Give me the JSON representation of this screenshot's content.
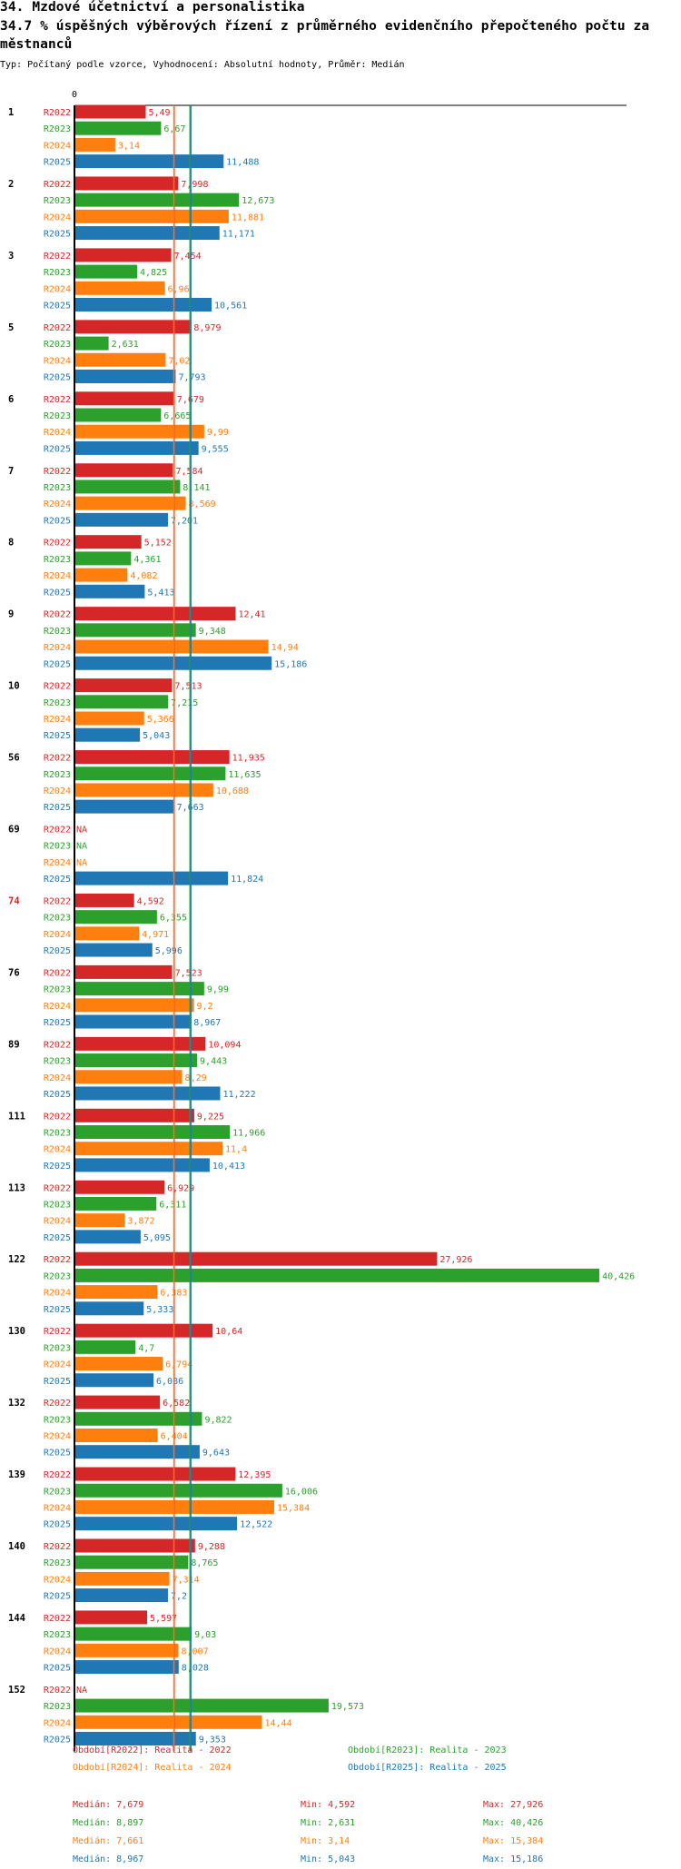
{
  "title": "34. Mzdové účetnictví a personalistika",
  "subtitle_line1": "34.7 % úspěšných výběrových řízení z průměrného evidenčního přepočteného počtu za",
  "subtitle_line2": "městnanců",
  "info": "Typ: Počítaný podle vzorce, Vyhodnocení: Absolutní hodnoty, Průměr: Medián",
  "colors": {
    "R2022": "#d62728",
    "R2023": "#2ca02c",
    "R2024": "#ff7f0e",
    "R2025": "#1f77b4",
    "highlight_group": "#d62728"
  },
  "chart_data": {
    "type": "bar",
    "orientation": "horizontal",
    "axis_zero_label": "0",
    "xlim": [
      0,
      40.426
    ],
    "series_names": [
      "R2022",
      "R2023",
      "R2024",
      "R2025"
    ],
    "median_lines": [
      {
        "series": "R2022",
        "value": 7.679
      },
      {
        "series": "R2023",
        "value": 8.897
      },
      {
        "series": "R2024",
        "value": 7.661
      },
      {
        "series": "R2025",
        "value": 8.967
      }
    ],
    "groups": [
      {
        "label": "1",
        "values": [
          5.49,
          6.67,
          3.14,
          11.488
        ],
        "labels": [
          "5,49",
          "6,67",
          "3,14",
          "11,488"
        ]
      },
      {
        "label": "2",
        "values": [
          7.998,
          12.673,
          11.881,
          11.171
        ],
        "labels": [
          "7,998",
          "12,673",
          "11,881",
          "11,171"
        ]
      },
      {
        "label": "3",
        "values": [
          7.454,
          4.825,
          6.96,
          10.561
        ],
        "labels": [
          "7,454",
          "4,825",
          "6,96",
          "10,561"
        ]
      },
      {
        "label": "5",
        "values": [
          8.979,
          2.631,
          7.02,
          7.793
        ],
        "labels": [
          "8,979",
          "2,631",
          "7,02",
          "7,793"
        ]
      },
      {
        "label": "6",
        "values": [
          7.679,
          6.665,
          9.99,
          9.555
        ],
        "labels": [
          "7,679",
          "6,665",
          "9,99",
          "9,555"
        ]
      },
      {
        "label": "7",
        "values": [
          7.584,
          8.141,
          8.569,
          7.201
        ],
        "labels": [
          "7,584",
          "8,141",
          "8,569",
          "7,201"
        ]
      },
      {
        "label": "8",
        "values": [
          5.152,
          4.361,
          4.082,
          5.413
        ],
        "labels": [
          "5,152",
          "4,361",
          "4,082",
          "5,413"
        ]
      },
      {
        "label": "9",
        "values": [
          12.41,
          9.348,
          14.94,
          15.186
        ],
        "labels": [
          "12,41",
          "9,348",
          "14,94",
          "15,186"
        ]
      },
      {
        "label": "10",
        "values": [
          7.513,
          7.215,
          5.366,
          5.043
        ],
        "labels": [
          "7,513",
          "7,215",
          "5,366",
          "5,043"
        ]
      },
      {
        "label": "56",
        "values": [
          11.935,
          11.635,
          10.688,
          7.663
        ],
        "labels": [
          "11,935",
          "11,635",
          "10,688",
          "7,663"
        ]
      },
      {
        "label": "69",
        "values": [
          null,
          null,
          null,
          11.824
        ],
        "labels": [
          "NA",
          "NA",
          "NA",
          "11,824"
        ]
      },
      {
        "label": "74",
        "values": [
          4.592,
          6.355,
          4.971,
          5.996
        ],
        "labels": [
          "4,592",
          "6,355",
          "4,971",
          "5,996"
        ],
        "highlight": true
      },
      {
        "label": "76",
        "values": [
          7.523,
          9.99,
          9.2,
          8.967
        ],
        "labels": [
          "7,523",
          "9,99",
          "9,2",
          "8,967"
        ]
      },
      {
        "label": "89",
        "values": [
          10.094,
          9.443,
          8.29,
          11.222
        ],
        "labels": [
          "10,094",
          "9,443",
          "8,29",
          "11,222"
        ]
      },
      {
        "label": "111",
        "values": [
          9.225,
          11.966,
          11.4,
          10.413
        ],
        "labels": [
          "9,225",
          "11,966",
          "11,4",
          "10,413"
        ]
      },
      {
        "label": "113",
        "values": [
          6.929,
          6.311,
          3.872,
          5.095
        ],
        "labels": [
          "6,929",
          "6,311",
          "3,872",
          "5,095"
        ]
      },
      {
        "label": "122",
        "values": [
          27.926,
          40.426,
          6.383,
          5.333
        ],
        "labels": [
          "27,926",
          "40,426",
          "6,383",
          "5,333"
        ]
      },
      {
        "label": "130",
        "values": [
          10.64,
          4.7,
          6.794,
          6.086
        ],
        "labels": [
          "10,64",
          "4,7",
          "6,794",
          "6,086"
        ]
      },
      {
        "label": "132",
        "values": [
          6.582,
          9.822,
          6.404,
          9.643
        ],
        "labels": [
          "6,582",
          "9,822",
          "6,404",
          "9,643"
        ]
      },
      {
        "label": "139",
        "values": [
          12.395,
          16.006,
          15.384,
          12.522
        ],
        "labels": [
          "12,395",
          "16,006",
          "15,384",
          "12,522"
        ]
      },
      {
        "label": "140",
        "values": [
          9.288,
          8.765,
          7.314,
          7.2
        ],
        "labels": [
          "9,288",
          "8,765",
          "7,314",
          "7,2"
        ]
      },
      {
        "label": "144",
        "values": [
          5.597,
          9.03,
          8.007,
          8.028
        ],
        "labels": [
          "5,597",
          "9,03",
          "8,007",
          "8,028"
        ]
      },
      {
        "label": "152",
        "values": [
          null,
          19.573,
          14.44,
          9.353
        ],
        "labels": [
          "NA",
          "19,573",
          "14,44",
          "9,353"
        ]
      }
    ],
    "legend": [
      {
        "series": "R2022",
        "text": "Období[R2022]: Realita - 2022"
      },
      {
        "series": "R2023",
        "text": "Období[R2023]: Realita - 2023"
      },
      {
        "series": "R2024",
        "text": "Období[R2024]: Realita - 2024"
      },
      {
        "series": "R2025",
        "text": "Období[R2025]: Realita - 2025"
      }
    ],
    "stats": [
      {
        "series": "R2022",
        "median": "Medián: 7,679",
        "min": "Min: 4,592",
        "max": "Max: 27,926"
      },
      {
        "series": "R2023",
        "median": "Medián: 8,897",
        "min": "Min: 2,631",
        "max": "Max: 40,426"
      },
      {
        "series": "R2024",
        "median": "Medián: 7,661",
        "min": "Min: 3,14",
        "max": "Max: 15,384"
      },
      {
        "series": "R2025",
        "median": "Medián: 8,967",
        "min": "Min: 5,043",
        "max": "Max: 15,186"
      }
    ]
  }
}
